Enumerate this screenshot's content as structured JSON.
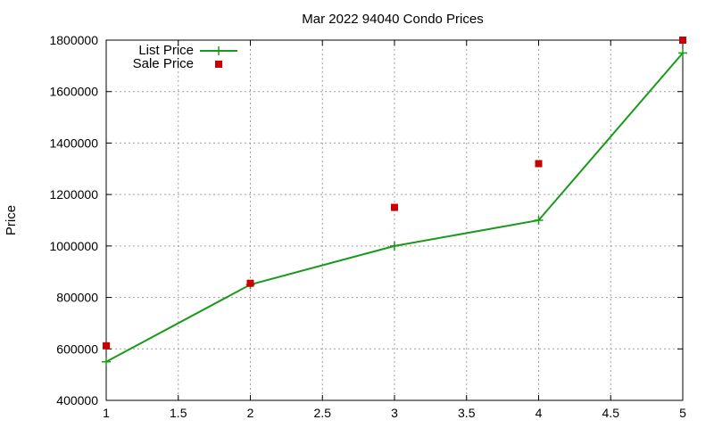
{
  "chart_data": {
    "type": "line",
    "title": "Mar 2022 94040 Condo Prices",
    "xlabel": "",
    "ylabel": "Price",
    "xlim": [
      1,
      5
    ],
    "ylim": [
      400000,
      1800000
    ],
    "x_ticks": [
      "1",
      "1.5",
      "2",
      "2.5",
      "3",
      "3.5",
      "4",
      "4.5",
      "5"
    ],
    "y_ticks": [
      "400000",
      "600000",
      "800000",
      "1000000",
      "1200000",
      "1400000",
      "1600000",
      "1800000"
    ],
    "grid": true,
    "legend_position": "top-left",
    "series": [
      {
        "name": "List Price",
        "style": "line+markers",
        "marker": "plus",
        "color": "#1a9a1a",
        "x": [
          1,
          2,
          3,
          4,
          5
        ],
        "y": [
          550000,
          850000,
          1000000,
          1100000,
          1750000
        ]
      },
      {
        "name": "Sale Price",
        "style": "markers",
        "marker": "square",
        "color": "#cc0000",
        "x": [
          1,
          2,
          3,
          4,
          5
        ],
        "y": [
          612000,
          855000,
          1150000,
          1320000,
          1800000
        ]
      }
    ]
  }
}
